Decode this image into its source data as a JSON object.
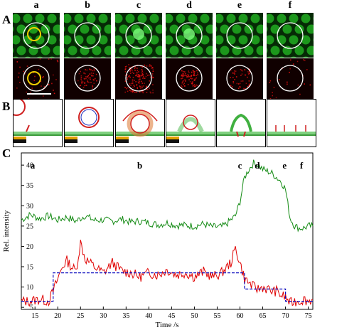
{
  "panels": {
    "A": "A",
    "B": "B",
    "C": "C"
  },
  "columns": [
    "a",
    "b",
    "c",
    "d",
    "e",
    "f"
  ],
  "colors": {
    "green_channel": "#1fa31f",
    "red_channel": "#e01010",
    "circle_outline": "#ffffff",
    "highlight_circle": "#f0d000",
    "scale_bar": "#ffffff",
    "trace_green": "#138a13",
    "trace_red": "#e00000",
    "fit_blue": "#1010c0"
  },
  "chart_data": {
    "type": "line",
    "xlabel": "Time /s",
    "ylabel": "Rel. intensity",
    "xlim": [
      12,
      76
    ],
    "ylim": [
      4.5,
      43
    ],
    "xticks": [
      15,
      20,
      25,
      30,
      35,
      40,
      45,
      50,
      55,
      60,
      65,
      70,
      75
    ],
    "yticks": [
      5,
      10,
      15,
      20,
      25,
      30,
      35,
      40
    ],
    "stage_labels": [
      {
        "label": "a",
        "x": 14.5
      },
      {
        "label": "b",
        "x": 38
      },
      {
        "label": "c",
        "x": 60
      },
      {
        "label": "d",
        "x": 63.8
      },
      {
        "label": "e",
        "x": 69.8
      },
      {
        "label": "f",
        "x": 73.5
      }
    ],
    "series": [
      {
        "color": "#138a13",
        "x": [
          12,
          14,
          16,
          18,
          20,
          22,
          24,
          26,
          28,
          30,
          32,
          34,
          36,
          38,
          40,
          42,
          44,
          46,
          48,
          50,
          52,
          54,
          56,
          57,
          58,
          59,
          60,
          60.5,
          61,
          62,
          63,
          64,
          65,
          66,
          67,
          68,
          69,
          70,
          71,
          72,
          73,
          74,
          75,
          76
        ],
        "y": [
          26.5,
          27.8,
          26.8,
          27.5,
          26.5,
          27.2,
          26.2,
          27.6,
          26.4,
          26.5,
          26.2,
          26.7,
          26.0,
          26.2,
          25.8,
          25.3,
          25.8,
          25.2,
          25.2,
          25.0,
          25.5,
          24.8,
          24.8,
          25.5,
          26.5,
          27.5,
          31,
          34,
          37,
          39,
          40.5,
          40,
          39,
          38.5,
          38,
          37,
          36,
          34,
          27,
          25,
          24.5,
          24.5,
          25,
          25
        ]
      },
      {
        "color": "#e00000",
        "x": [
          12,
          14,
          16,
          18,
          19,
          20,
          21,
          22,
          23,
          24,
          25,
          26,
          27,
          28,
          30,
          32,
          34,
          36,
          38,
          40,
          42,
          44,
          46,
          48,
          50,
          52,
          54,
          56,
          58,
          59,
          60,
          61,
          62,
          63,
          64,
          65,
          66,
          67,
          68,
          69,
          70,
          71,
          72,
          73,
          74,
          75,
          76
        ],
        "y": [
          6.5,
          6.5,
          7.0,
          6.5,
          9,
          12,
          15,
          16.5,
          15,
          14,
          21,
          17,
          16,
          15,
          13.5,
          16,
          14,
          13.5,
          12.5,
          13.5,
          13,
          14.2,
          13,
          13.5,
          12.5,
          13.8,
          12.5,
          13.5,
          16,
          19.5,
          16,
          12,
          11,
          10,
          9.5,
          10,
          9.5,
          9,
          9,
          8,
          7.5,
          6,
          6.5,
          6.5,
          7,
          6.5,
          7
        ]
      },
      {
        "color": "#1010c0",
        "x": [
          12,
          19,
          19,
          59.5,
          59.5,
          61,
          61,
          70,
          70,
          76
        ],
        "y": [
          6.5,
          6.5,
          13.5,
          13.5,
          13.5,
          13.5,
          9.5,
          9.5,
          6.5,
          6.5
        ]
      }
    ]
  }
}
